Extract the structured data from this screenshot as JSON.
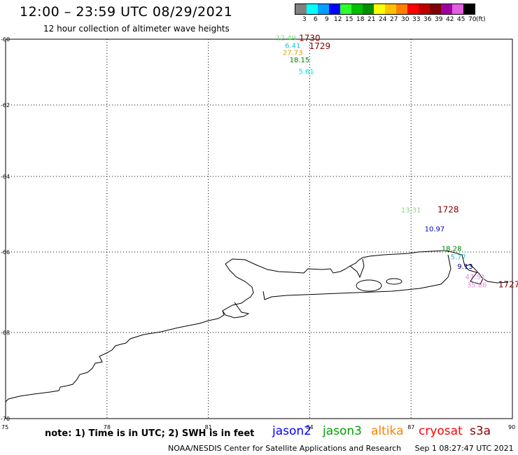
{
  "header": {
    "title": "12:00 – 23:59 UTC 08/29/2021",
    "subtitle": "12 hour collection of altimeter wave heights"
  },
  "scale": {
    "unit": "(ft)",
    "bins": [
      {
        "label": "3",
        "color": "#808080"
      },
      {
        "label": "6",
        "color": "#00ffff"
      },
      {
        "label": "9",
        "color": "#00a0ff"
      },
      {
        "label": "12",
        "color": "#0000ff"
      },
      {
        "label": "15",
        "color": "#30ff30"
      },
      {
        "label": "18",
        "color": "#00c000"
      },
      {
        "label": "21",
        "color": "#009000"
      },
      {
        "label": "24",
        "color": "#ffff00"
      },
      {
        "label": "27",
        "color": "#ffc000"
      },
      {
        "label": "30",
        "color": "#ff8000"
      },
      {
        "label": "33",
        "color": "#ff0000"
      },
      {
        "label": "36",
        "color": "#c00000"
      },
      {
        "label": "39",
        "color": "#800000"
      },
      {
        "label": "42",
        "color": "#a000a0"
      },
      {
        "label": "45",
        "color": "#e060e0"
      },
      {
        "label": "70",
        "color": "#000000"
      }
    ]
  },
  "map": {
    "lon_ticks": [
      "75",
      "78",
      "81",
      "84",
      "87",
      "90"
    ],
    "lat_ticks": [
      "-60",
      "-62",
      "-64",
      "-66",
      "-68",
      "-70"
    ]
  },
  "observations": [
    {
      "text": "12.49",
      "lon": 83.3,
      "lat": -60.03,
      "color": "#70e070"
    },
    {
      "text": "1730",
      "lon": 84.0,
      "lat": -60.05,
      "color": "#800000",
      "big": true
    },
    {
      "text": "6.41",
      "lon": 83.5,
      "lat": -60.27,
      "color": "#20c0e0"
    },
    {
      "text": "1729",
      "lon": 84.3,
      "lat": -60.3,
      "color": "#800000",
      "big": true
    },
    {
      "text": "27.73",
      "lon": 83.5,
      "lat": -60.48,
      "color": "#e0a000"
    },
    {
      "text": "18.15",
      "lon": 83.7,
      "lat": -60.7,
      "color": "#008000"
    },
    {
      "text": "5.61",
      "lon": 83.9,
      "lat": -61.05,
      "color": "#00e0e0"
    },
    {
      "text": "13.31",
      "lon": 87.0,
      "lat": -64.95,
      "color": "#80e080"
    },
    {
      "text": "1728",
      "lon": 88.1,
      "lat": -64.95,
      "color": "#800000",
      "big": true
    },
    {
      "text": "10.97",
      "lon": 87.7,
      "lat": -65.45,
      "color": "#0000c0"
    },
    {
      "text": "18.28",
      "lon": 88.2,
      "lat": -65.97,
      "color": "#008000"
    },
    {
      "text": "5.77",
      "lon": 88.4,
      "lat": -66.18,
      "color": "#20c0d0"
    },
    {
      "text": "9.13",
      "lon": 88.6,
      "lat": -66.42,
      "color": "#000080"
    },
    {
      "text": "47.51",
      "lon": 88.9,
      "lat": -66.68,
      "color": "#e090e0"
    },
    {
      "text": "35.86",
      "lon": 88.95,
      "lat": -66.88,
      "color": "#e090e0"
    },
    {
      "text": "1727",
      "lon": 89.9,
      "lat": -66.88,
      "color": "#800000",
      "big": true
    }
  ],
  "footer": {
    "note": "note: 1) Time is in UTC; 2) SWH is in feet",
    "satellites": [
      {
        "name": "jason2",
        "color": "#0000ff"
      },
      {
        "name": "jason3",
        "color": "#00a000"
      },
      {
        "name": "altika",
        "color": "#ff8000"
      },
      {
        "name": "cryosat",
        "color": "#ff0000"
      },
      {
        "name": "s3a",
        "color": "#8b0000"
      }
    ],
    "credit": "NOAA/NESDIS Center for Satellite Applications and Research",
    "timestamp": "Sep  1 08:27:47 UTC 2021"
  }
}
